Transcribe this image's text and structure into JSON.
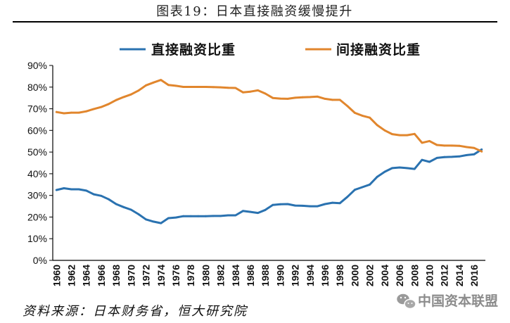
{
  "chart_data": {
    "type": "line",
    "title": "图表19：日本直接融资缓慢提升",
    "legend": "top",
    "grid": false,
    "ylim": [
      0,
      90
    ],
    "y_tick_labels": [
      "0%",
      "10%",
      "20%",
      "30%",
      "40%",
      "50%",
      "60%",
      "70%",
      "80%",
      "90%"
    ],
    "x": [
      1960,
      1961,
      1962,
      1963,
      1964,
      1965,
      1966,
      1967,
      1968,
      1969,
      1970,
      1971,
      1972,
      1973,
      1974,
      1975,
      1976,
      1977,
      1978,
      1979,
      1980,
      1981,
      1982,
      1983,
      1984,
      1985,
      1986,
      1987,
      1988,
      1989,
      1990,
      1991,
      1992,
      1993,
      1994,
      1995,
      1996,
      1997,
      1998,
      1999,
      2000,
      2001,
      2002,
      2003,
      2004,
      2005,
      2006,
      2007,
      2008,
      2009,
      2010,
      2011,
      2012,
      2013,
      2014,
      2015,
      2016,
      2017
    ],
    "x_tick_labels": [
      "1960",
      "1962",
      "1964",
      "1966",
      "1968",
      "1970",
      "1972",
      "1974",
      "1976",
      "1978",
      "1980",
      "1982",
      "1984",
      "1986",
      "1988",
      "1990",
      "1992",
      "1994",
      "1996",
      "1998",
      "2000",
      "2002",
      "2004",
      "2006",
      "2008",
      "2010",
      "2012",
      "2014",
      "2016"
    ],
    "series": [
      {
        "name": "直接融资比重",
        "color": "#2a72b0",
        "values": [
          32.5,
          33.3,
          32.8,
          32.8,
          32.2,
          30.5,
          29.8,
          28.2,
          26.0,
          24.6,
          23.4,
          21.3,
          18.9,
          17.9,
          17.2,
          19.5,
          19.8,
          20.4,
          20.4,
          20.4,
          20.4,
          20.5,
          20.5,
          20.8,
          20.8,
          22.8,
          22.4,
          21.9,
          23.3,
          25.6,
          25.9,
          26.0,
          25.3,
          25.2,
          25.0,
          25.0,
          26.0,
          26.6,
          26.4,
          29.3,
          32.6,
          33.8,
          35.0,
          38.6,
          40.9,
          42.6,
          42.9,
          42.6,
          42.2,
          46.4,
          45.5,
          47.3,
          47.7,
          47.8,
          48.0,
          48.6,
          49.0,
          51.2
        ]
      },
      {
        "name": "间接融资比重",
        "color": "#e1862d",
        "values": [
          68.5,
          67.9,
          68.2,
          68.2,
          68.8,
          69.9,
          70.8,
          72.2,
          74.0,
          75.4,
          76.6,
          78.4,
          80.8,
          82.1,
          83.3,
          81.0,
          80.6,
          80.1,
          80.1,
          80.1,
          80.1,
          80.0,
          79.9,
          79.7,
          79.6,
          77.6,
          77.9,
          78.5,
          77.0,
          75.0,
          74.7,
          74.6,
          75.1,
          75.3,
          75.4,
          75.6,
          74.6,
          74.1,
          74.1,
          71.3,
          68.1,
          66.8,
          65.9,
          62.4,
          60.0,
          58.3,
          57.8,
          57.8,
          58.4,
          54.3,
          55.1,
          53.3,
          53.0,
          53.0,
          52.9,
          52.3,
          51.9,
          50.3
        ]
      }
    ]
  },
  "source": "资料来源：日本财务省，恒大研究院",
  "watermark": {
    "text": "中国资本联盟",
    "icon": "wechat-icon"
  }
}
